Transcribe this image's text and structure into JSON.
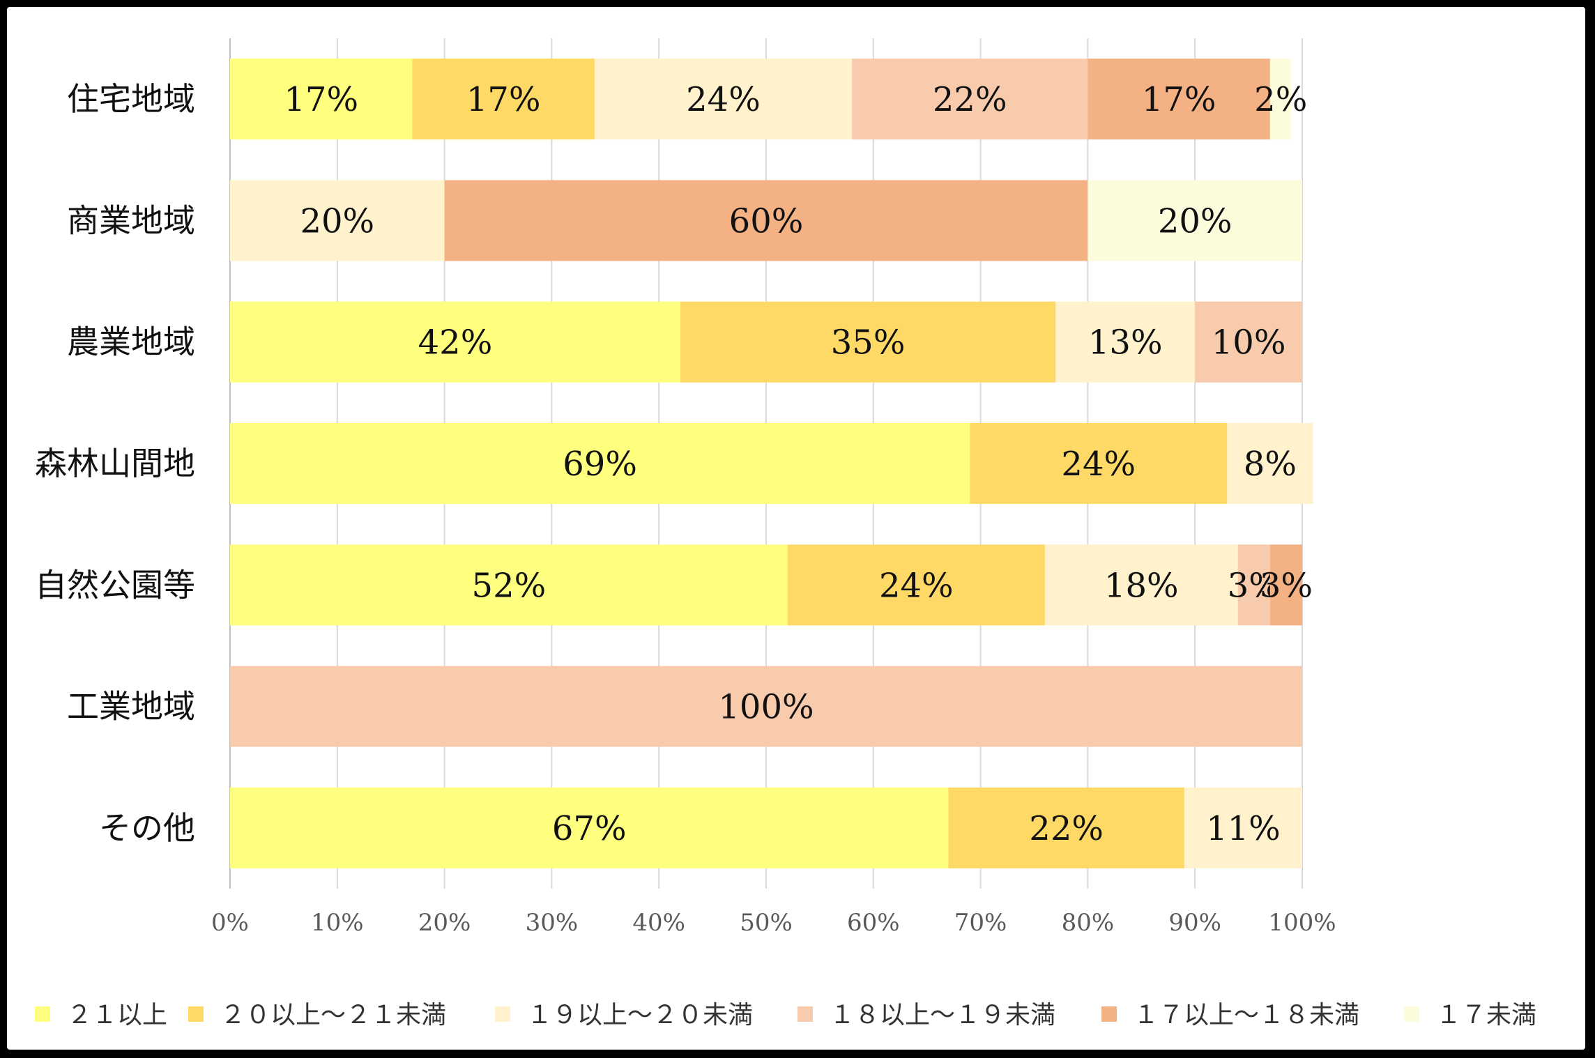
{
  "chart_data": {
    "type": "bar",
    "orientation": "horizontal",
    "stacked": "percent",
    "categories": [
      "住宅地域",
      "商業地域",
      "農業地域",
      "森林山間地",
      "自然公園等",
      "工業地域",
      "その他"
    ],
    "series": [
      {
        "name": "２１以上",
        "color": "#FFFF7F",
        "values": [
          17,
          0,
          42,
          69,
          52,
          0,
          67
        ]
      },
      {
        "name": "２０以上～２１未満",
        "color": "#FFD966",
        "values": [
          17,
          0,
          35,
          24,
          24,
          0,
          22
        ]
      },
      {
        "name": "１９以上～２０未満",
        "color": "#FFF2CC",
        "values": [
          24,
          20,
          13,
          8,
          18,
          0,
          11
        ]
      },
      {
        "name": "１８以上～１９未満",
        "color": "#F8CBAD",
        "values": [
          22,
          0,
          10,
          0,
          3,
          100,
          0
        ]
      },
      {
        "name": "１７以上～１８未満",
        "color": "#F4B183",
        "values": [
          17,
          60,
          0,
          0,
          3,
          0,
          0
        ]
      },
      {
        "name": "１７未満",
        "color": "#FCFCDC",
        "values": [
          2,
          20,
          0,
          0,
          0,
          0,
          0
        ]
      }
    ],
    "xlim": [
      0,
      100
    ],
    "xticks": [
      "0%",
      "10%",
      "20%",
      "30%",
      "40%",
      "50%",
      "60%",
      "70%",
      "80%",
      "90%",
      "100%"
    ],
    "grid": true,
    "legend": "bottom",
    "title": "",
    "xlabel": "",
    "ylabel": ""
  }
}
